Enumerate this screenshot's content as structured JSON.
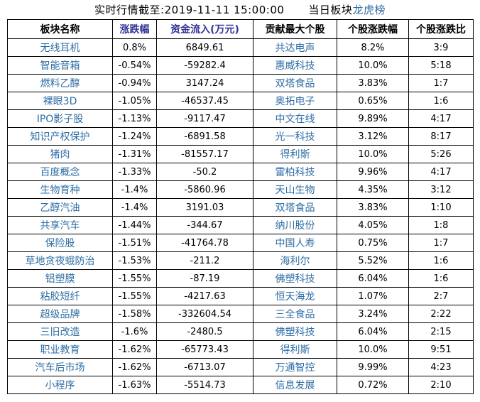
{
  "title": {
    "timestamp_text": "实时行情截至:2019-11-11 15:00:00",
    "board_label": "当日板块",
    "board_link": "龙虎榜"
  },
  "table": {
    "headers": [
      "板块名称",
      "涨跌幅",
      "资金流入(万元)",
      "贡献最大个股",
      "个股涨跌幅",
      "个股涨跌比"
    ],
    "rows": [
      [
        "无线耳机",
        "0.8%",
        "6849.61",
        "共达电声",
        "8.2%",
        "3:9"
      ],
      [
        "智能音箱",
        "-0.54%",
        "-59282.4",
        "惠威科技",
        "10.0%",
        "5:18"
      ],
      [
        "燃料乙醇",
        "-0.94%",
        "3147.24",
        "双塔食品",
        "3.83%",
        "1:7"
      ],
      [
        "裸眼3D",
        "-1.05%",
        "-46537.45",
        "奥拓电子",
        "0.65%",
        "1:6"
      ],
      [
        "IPO影子股",
        "-1.13%",
        "-9117.47",
        "中文在线",
        "9.89%",
        "4:17"
      ],
      [
        "知识产权保护",
        "-1.24%",
        "-6891.58",
        "光一科技",
        "3.12%",
        "8:17"
      ],
      [
        "猪肉",
        "-1.31%",
        "-81557.17",
        "得利斯",
        "10.0%",
        "5:26"
      ],
      [
        "百度概念",
        "-1.33%",
        "-50.2",
        "雷柏科技",
        "9.96%",
        "4:17"
      ],
      [
        "生物育种",
        "-1.4%",
        "-5860.96",
        "天山生物",
        "4.35%",
        "3:12"
      ],
      [
        "乙醇汽油",
        "-1.4%",
        "3191.03",
        "双塔食品",
        "3.83%",
        "1:10"
      ],
      [
        "共享汽车",
        "-1.44%",
        "-344.67",
        "纳川股份",
        "4.05%",
        "1:8"
      ],
      [
        "保险股",
        "-1.51%",
        "-41764.78",
        "中国人寿",
        "0.75%",
        "1:7"
      ],
      [
        "草地贪夜蛾防治",
        "-1.53%",
        "-211.2",
        "海利尔",
        "5.52%",
        "1:6"
      ],
      [
        "铝塑膜",
        "-1.55%",
        "-87.19",
        "佛塑科技",
        "6.04%",
        "1:6"
      ],
      [
        "粘胶短纤",
        "-1.55%",
        "-4217.63",
        "恒天海龙",
        "1.07%",
        "2:7"
      ],
      [
        "超级品牌",
        "-1.58%",
        "-332604.54",
        "三全食品",
        "3.24%",
        "2:22"
      ],
      [
        "三旧改造",
        "-1.6%",
        "-2480.5",
        "佛塑科技",
        "6.04%",
        "2:15"
      ],
      [
        "职业教育",
        "-1.62%",
        "-65773.43",
        "得利斯",
        "10.0%",
        "9:51"
      ],
      [
        "汽车后市场",
        "-1.62%",
        "-6713.07",
        "万通智控",
        "9.99%",
        "4:23"
      ],
      [
        "小程序",
        "-1.63%",
        "-5514.73",
        "信息发展",
        "0.72%",
        "2:10"
      ]
    ]
  },
  "colors": {
    "name_link": "#2E6DA4",
    "title_link": "#2E6DA4",
    "header_accent": "#333399",
    "border": "#000000",
    "text": "#000000",
    "background": "#FFFFFF"
  }
}
